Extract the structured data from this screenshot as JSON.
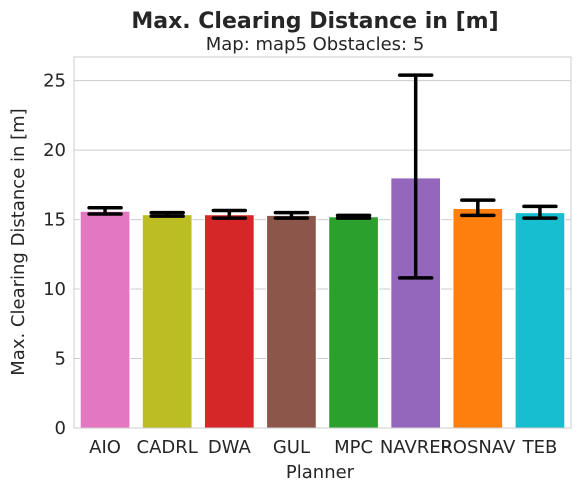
{
  "chart_data": {
    "type": "bar",
    "title": "Max. Clearing Distance in [m]",
    "subtitle": "Map: map5 Obstacles: 5",
    "xlabel": "Planner",
    "ylabel": "Max. Clearing Distance in [m]",
    "ylim": [
      0,
      26.7
    ],
    "yticks": [
      0,
      5,
      10,
      15,
      20,
      25
    ],
    "grid": true,
    "categories": [
      "AIO",
      "CADRL",
      "DWA",
      "GUL",
      "MPC",
      "NAVREP",
      "ROSNAV",
      "TEB"
    ],
    "values": [
      15.6,
      15.35,
      15.35,
      15.3,
      15.2,
      18.0,
      15.8,
      15.5
    ],
    "error_low": [
      15.4,
      15.25,
      15.1,
      15.1,
      15.1,
      10.8,
      15.3,
      15.1
    ],
    "error_high": [
      15.85,
      15.5,
      15.65,
      15.5,
      15.3,
      25.4,
      16.4,
      15.95
    ],
    "colors": [
      "#e377c2",
      "#bcbd22",
      "#d62728",
      "#8c564b",
      "#2ca02c",
      "#9467bd",
      "#ff7f0e",
      "#17becf"
    ]
  }
}
